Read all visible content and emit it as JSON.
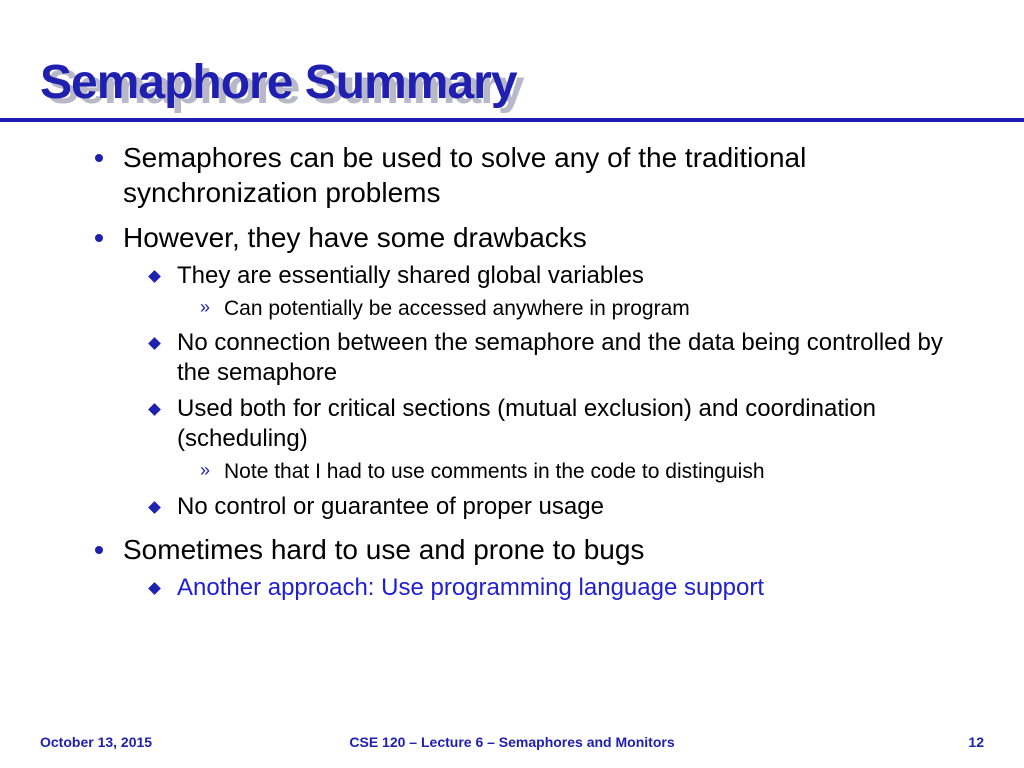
{
  "colors": {
    "primary": "#2020b0",
    "shadow": "#b8b8c8",
    "text": "#000000",
    "highlight": "#2020d0",
    "background": "#ffffff"
  },
  "typography": {
    "title_fontsize": 48,
    "l1_fontsize": 28,
    "l2_fontsize": 24,
    "l3_fontsize": 21,
    "footer_fontsize": 14
  },
  "title": "Semaphore Summary",
  "bullets": [
    {
      "text": "Semaphores can be used to solve any of the traditional synchronization problems",
      "children": []
    },
    {
      "text": "However, they have some drawbacks",
      "children": [
        {
          "text": "They are essentially shared global variables",
          "highlight": false,
          "children": [
            {
              "text": "Can potentially be accessed anywhere in program"
            }
          ]
        },
        {
          "text": "No connection between the semaphore and the data being controlled by the semaphore",
          "highlight": false,
          "children": []
        },
        {
          "text": "Used both for critical sections (mutual exclusion) and coordination (scheduling)",
          "highlight": false,
          "children": [
            {
              "text": "Note that I had to use comments in the code to distinguish"
            }
          ]
        },
        {
          "text": "No control or guarantee of proper usage",
          "highlight": false,
          "children": []
        }
      ]
    },
    {
      "text": "Sometimes hard to use and prone to bugs",
      "children": [
        {
          "text": "Another approach: Use programming language support",
          "highlight": true,
          "children": []
        }
      ]
    }
  ],
  "footer": {
    "date": "October 13, 2015",
    "center": "CSE 120 – Lecture 6 – Semaphores and Monitors",
    "page": "12"
  }
}
